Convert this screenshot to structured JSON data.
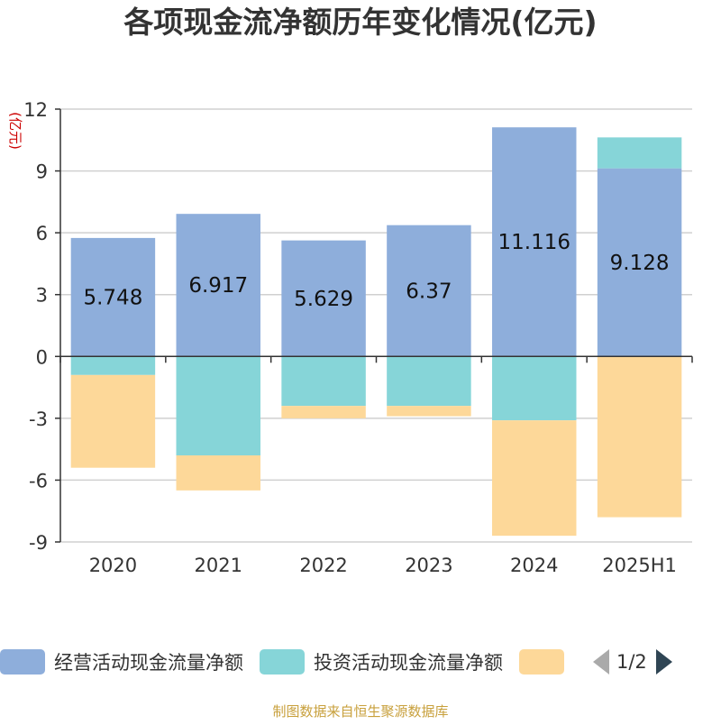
{
  "title": "各项现金流净额历年变化情况(亿元)",
  "source": "制图数据来自恒生聚源数据库",
  "pager": "1/2",
  "chart_data": {
    "type": "bar",
    "stacked": true,
    "title": "各项现金流净额历年变化情况(亿元)",
    "ylabel": "(亿元)",
    "ylim": [
      -9,
      12
    ],
    "yticks": [
      12,
      9,
      6,
      3,
      0,
      -3,
      -6,
      -9
    ],
    "grid": true,
    "legend_position": "bottom",
    "categories": [
      "2020",
      "2021",
      "2022",
      "2023",
      "2024",
      "2025H1"
    ],
    "series": [
      {
        "name": "经营活动现金流量净额",
        "color": "#8eaedb",
        "values": [
          5.748,
          6.917,
          5.629,
          6.37,
          11.116,
          9.128
        ],
        "data_labels": [
          "5.748",
          "6.917",
          "5.629",
          "6.37",
          "11.116",
          "9.128"
        ]
      },
      {
        "name": "投资活动现金流量净额",
        "color": "#86d5d8",
        "values": [
          -0.9,
          -4.8,
          -2.4,
          -2.4,
          -3.1,
          1.5
        ]
      },
      {
        "name": "",
        "color": "#fdd899",
        "values": [
          -4.5,
          -1.7,
          -0.6,
          -0.5,
          -5.6,
          -7.8
        ]
      }
    ]
  },
  "legend": [
    {
      "label": "经营活动现金流量净额",
      "color": "#8eaedb"
    },
    {
      "label": "投资活动现金流量净额",
      "color": "#86d5d8"
    },
    {
      "label": "",
      "color": "#fdd899"
    }
  ]
}
